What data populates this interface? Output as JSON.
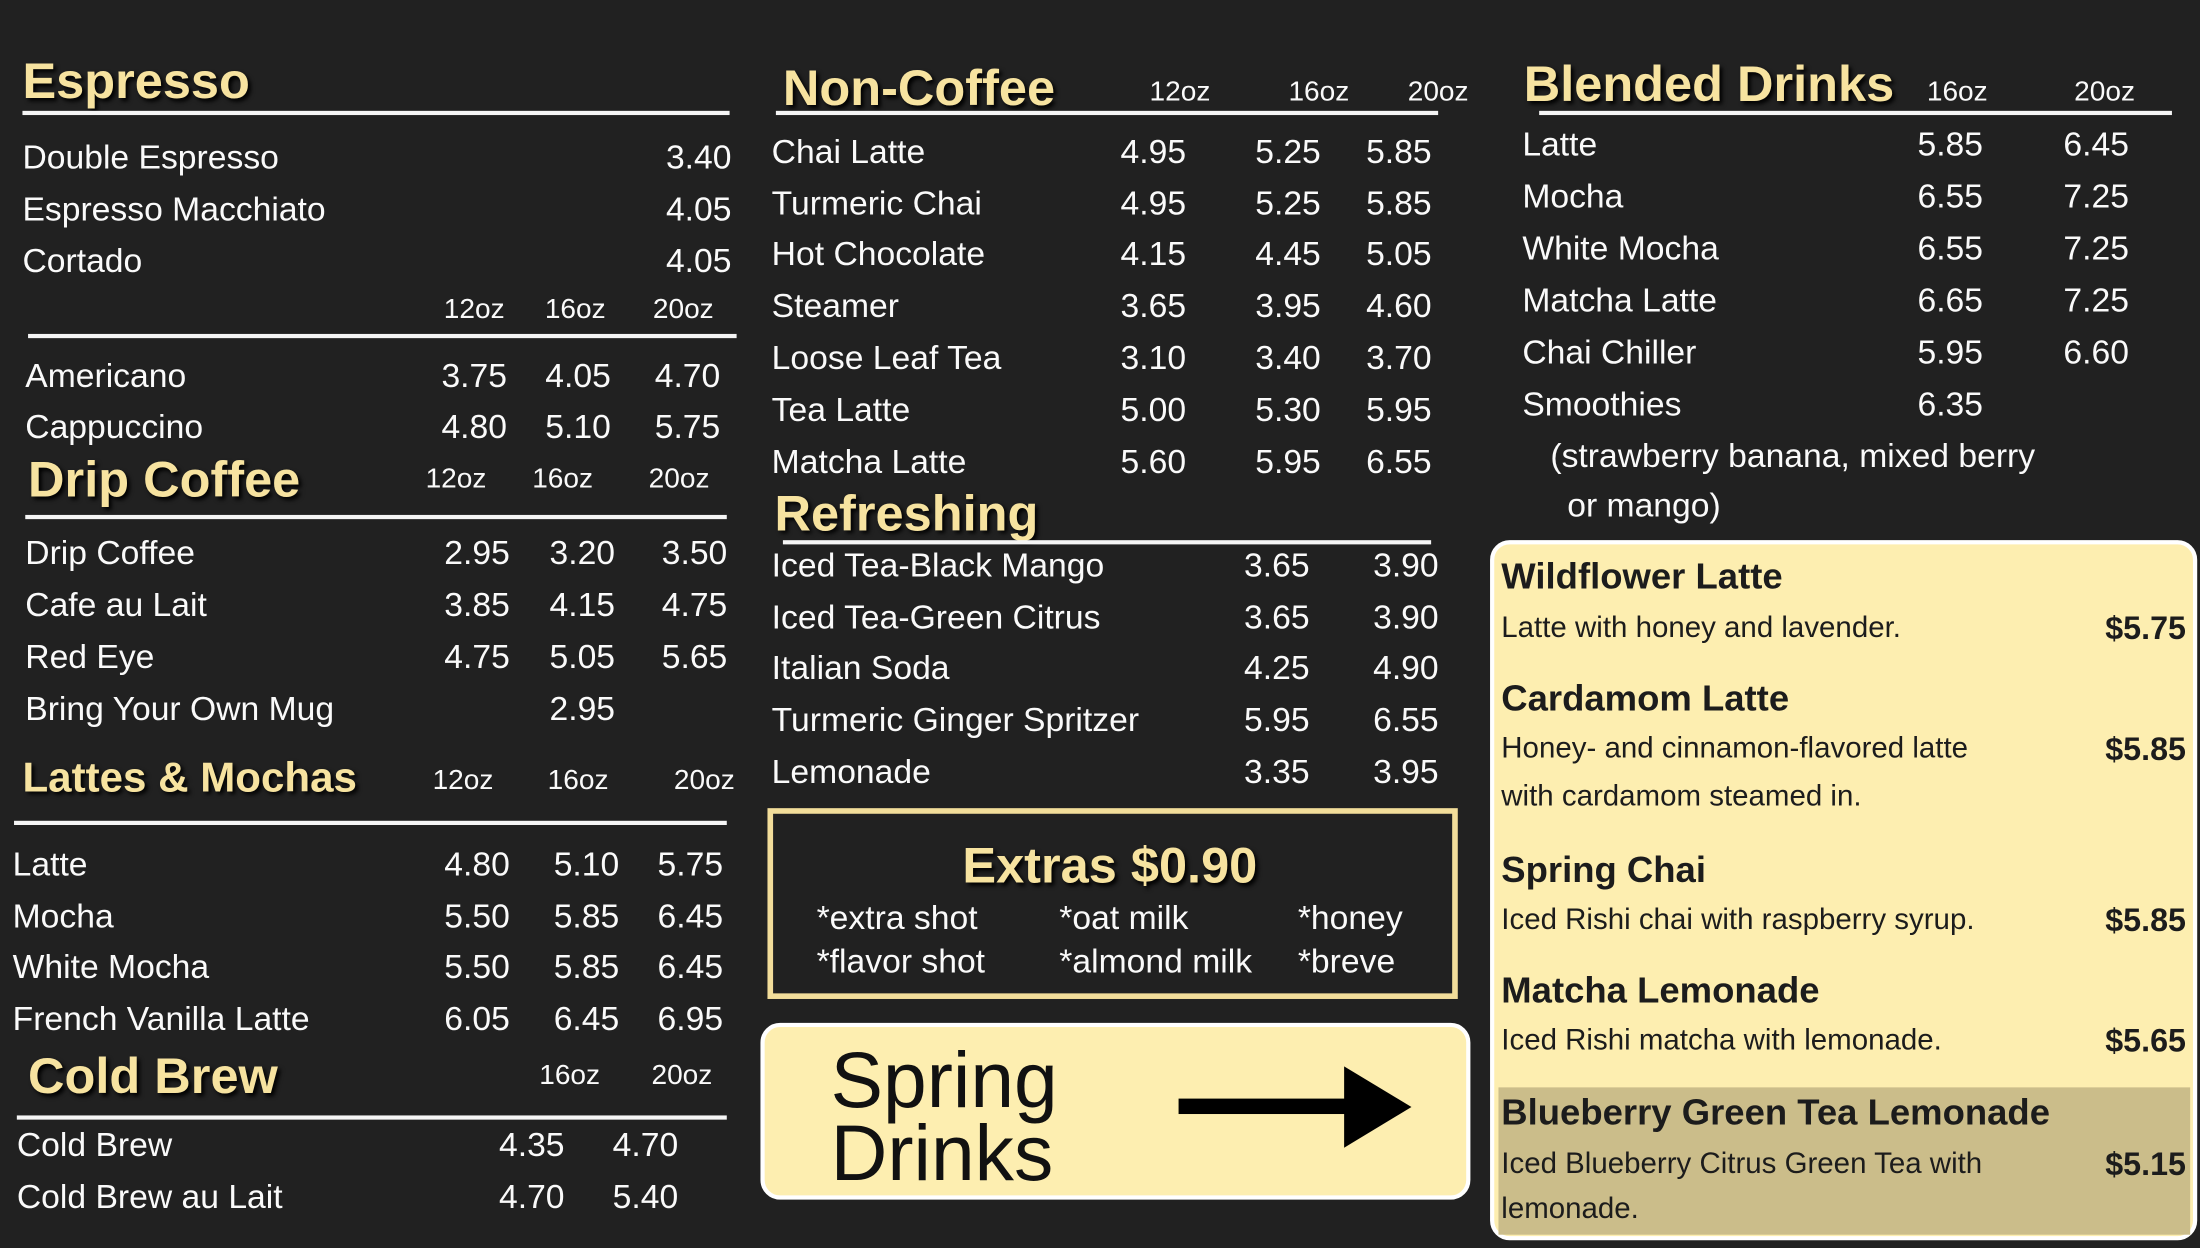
{
  "espresso": {
    "title": "Espresso",
    "items": [
      {
        "name": "Double Espresso",
        "prices": [
          "3.40"
        ]
      },
      {
        "name": "Espresso Macchiato",
        "prices": [
          "4.05"
        ]
      },
      {
        "name": "Cortado",
        "prices": [
          "4.05"
        ]
      }
    ]
  },
  "espresso_sized": {
    "sizes": [
      "12oz",
      "16oz",
      "20oz"
    ],
    "items": [
      {
        "name": "Americano",
        "prices": [
          "3.75",
          "4.05",
          "4.70"
        ]
      },
      {
        "name": "Cappuccino",
        "prices": [
          "4.80",
          "5.10",
          "5.75"
        ]
      }
    ]
  },
  "drip": {
    "title": "Drip Coffee",
    "sizes": [
      "12oz",
      "16oz",
      "20oz"
    ],
    "items": [
      {
        "name": "Drip Coffee",
        "prices": [
          "2.95",
          "3.20",
          "3.50"
        ]
      },
      {
        "name": "Cafe au Lait",
        "prices": [
          "3.85",
          "4.15",
          "4.75"
        ]
      },
      {
        "name": "Red Eye",
        "prices": [
          "4.75",
          "5.05",
          "5.65"
        ]
      },
      {
        "name": "Bring Your Own Mug",
        "prices": [
          null,
          "2.95",
          null
        ]
      }
    ]
  },
  "lattes": {
    "title": "Lattes & Mochas",
    "sizes": [
      "12oz",
      "16oz",
      "20oz"
    ],
    "items": [
      {
        "name": "Latte",
        "prices": [
          "4.80",
          "5.10",
          "5.75"
        ]
      },
      {
        "name": "Mocha",
        "prices": [
          "5.50",
          "5.85",
          "6.45"
        ]
      },
      {
        "name": "White Mocha",
        "prices": [
          "5.50",
          "5.85",
          "6.45"
        ]
      },
      {
        "name": "French Vanilla Latte",
        "prices": [
          "6.05",
          "6.45",
          "6.95"
        ]
      }
    ]
  },
  "coldbrew": {
    "title": "Cold Brew",
    "sizes": [
      "16oz",
      "20oz"
    ],
    "items": [
      {
        "name": "Cold Brew",
        "prices": [
          "4.35",
          "4.70"
        ]
      },
      {
        "name": "Cold Brew au Lait",
        "prices": [
          "4.70",
          "5.40"
        ]
      }
    ]
  },
  "noncoffee": {
    "title": "Non-Coffee",
    "sizes": [
      "12oz",
      "16oz",
      "20oz"
    ],
    "items": [
      {
        "name": "Chai Latte",
        "prices": [
          "4.95",
          "5.25",
          "5.85"
        ]
      },
      {
        "name": "Turmeric Chai",
        "prices": [
          "4.95",
          "5.25",
          "5.85"
        ]
      },
      {
        "name": "Hot Chocolate",
        "prices": [
          "4.15",
          "4.45",
          "5.05"
        ]
      },
      {
        "name": "Steamer",
        "prices": [
          "3.65",
          "3.95",
          "4.60"
        ]
      },
      {
        "name": "Loose Leaf Tea",
        "prices": [
          "3.10",
          "3.40",
          "3.70"
        ]
      },
      {
        "name": "Tea Latte",
        "prices": [
          "5.00",
          "5.30",
          "5.95"
        ]
      },
      {
        "name": "Matcha Latte",
        "prices": [
          "5.60",
          "5.95",
          "6.55"
        ]
      }
    ]
  },
  "refreshing": {
    "title": "Refreshing",
    "items": [
      {
        "name": "Iced Tea-Black Mango",
        "prices": [
          "3.65",
          "3.90"
        ]
      },
      {
        "name": "Iced Tea-Green Citrus",
        "prices": [
          "3.65",
          "3.90"
        ]
      },
      {
        "name": "Italian Soda",
        "prices": [
          "4.25",
          "4.90"
        ]
      },
      {
        "name": "Turmeric Ginger Spritzer",
        "prices": [
          "5.95",
          "6.55"
        ]
      },
      {
        "name": "Lemonade",
        "prices": [
          "3.35",
          "3.95"
        ]
      }
    ]
  },
  "blended": {
    "title": "Blended Drinks",
    "sizes": [
      "16oz",
      "20oz"
    ],
    "items": [
      {
        "name": "Latte",
        "prices": [
          "5.85",
          "6.45"
        ]
      },
      {
        "name": "Mocha",
        "prices": [
          "6.55",
          "7.25"
        ]
      },
      {
        "name": "White Mocha",
        "prices": [
          "6.55",
          "7.25"
        ]
      },
      {
        "name": "Matcha Latte",
        "prices": [
          "6.65",
          "7.25"
        ]
      },
      {
        "name": "Chai Chiller",
        "prices": [
          "5.95",
          "6.60"
        ]
      },
      {
        "name": "Smoothies",
        "prices": [
          "6.35",
          null
        ]
      }
    ],
    "note": [
      "(strawberry banana, mixed berry",
      "or mango)"
    ]
  },
  "extras": {
    "title": "Extras $0.90",
    "items": [
      "*extra shot",
      "*oat milk",
      "*honey",
      "*flavor shot",
      "*almond milk",
      "*breve"
    ]
  },
  "spring_banner": {
    "lines": [
      "Spring",
      "Drinks"
    ],
    "icon": "arrow-right-icon"
  },
  "spring": {
    "items": [
      {
        "name": "Wildflower Latte",
        "desc": [
          "Latte with honey and lavender."
        ],
        "price": "$5.75"
      },
      {
        "name": "Cardamom Latte",
        "desc": [
          "Honey- and cinnamon-flavored latte",
          "with cardamom steamed in."
        ],
        "price": "$5.85"
      },
      {
        "name": "Spring Chai",
        "desc": [
          "Iced Rishi chai with raspberry syrup."
        ],
        "price": "$5.85"
      },
      {
        "name": "Matcha Lemonade",
        "desc": [
          "Iced Rishi matcha with lemonade."
        ],
        "price": "$5.65"
      },
      {
        "name": "Blueberry Green Tea Lemonade",
        "desc": [
          "Iced Blueberry Citrus Green Tea with",
          "lemonade."
        ],
        "price": "$5.15",
        "highlighted": true
      }
    ]
  },
  "colors": {
    "background": "#212121",
    "heading": "#f7e3a0",
    "panel": "#fdeeb0",
    "highlight": "#cbbd8a"
  }
}
